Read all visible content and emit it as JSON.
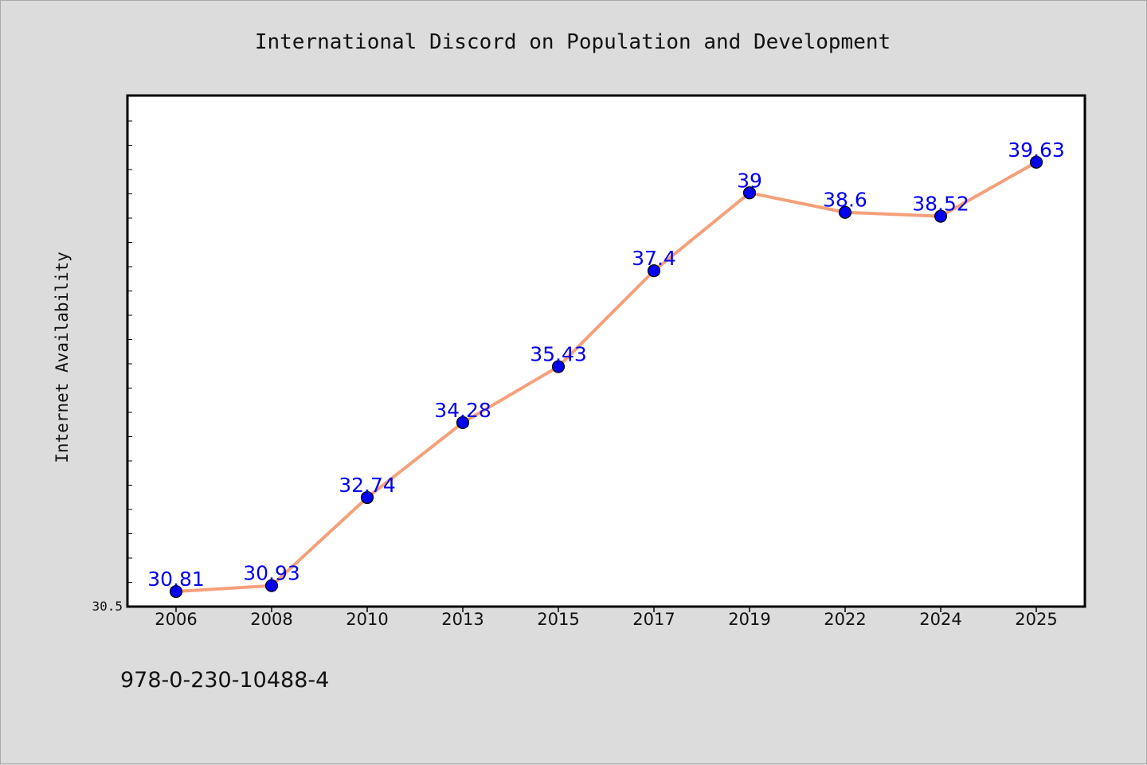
{
  "chart_data": {
    "type": "line",
    "title": "International Discord on Population and Development",
    "xlabel": "",
    "ylabel": "Internet Availability",
    "categories": [
      "2006",
      "2008",
      "2010",
      "2013",
      "2015",
      "2017",
      "2019",
      "2022",
      "2024",
      "2025"
    ],
    "series": [
      {
        "values": [
          30.81,
          30.93,
          32.74,
          34.28,
          35.43,
          37.4,
          39,
          38.6,
          38.52,
          39.63
        ],
        "data_labels": [
          "30.81",
          "30.93",
          "32.74",
          "34.28",
          "35.43",
          "37.4",
          "39",
          "38.6",
          "38.52",
          "39.63"
        ]
      }
    ],
    "ylim": [
      30.5,
      41
    ],
    "y_tick_labels": [
      "30.5"
    ],
    "grid": false,
    "legend": "none",
    "colors": {
      "line": "#f4a07a",
      "marker": "#0000ee",
      "label": "#0000ee",
      "background": "#dcdcdc",
      "plot_bg": "#ffffff"
    }
  },
  "footnote": "978-0-230-10488-4"
}
